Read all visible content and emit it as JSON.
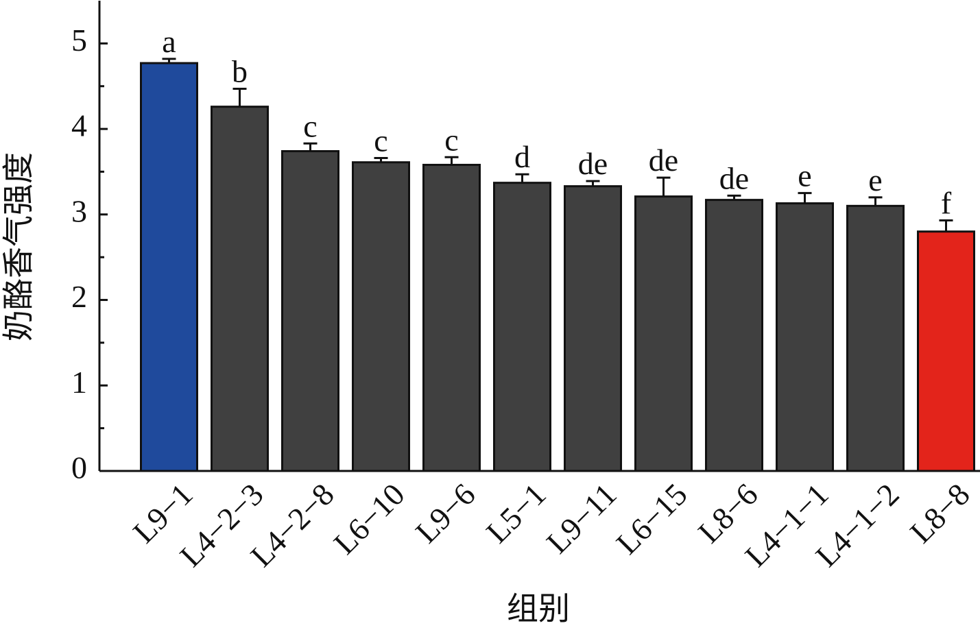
{
  "chart_data": {
    "type": "bar",
    "x_label": "组别",
    "y_label": "奶酪香气强度",
    "categories": [
      "L9−1",
      "L4−2−3",
      "L4−2−8",
      "L6−10",
      "L9−6",
      "L5−1",
      "L9−11",
      "L6−15",
      "L8−6",
      "L4−1−1",
      "L4−1−2",
      "L8−8"
    ],
    "values": [
      4.77,
      4.26,
      3.74,
      3.61,
      3.58,
      3.37,
      3.33,
      3.21,
      3.17,
      3.13,
      3.1,
      2.8
    ],
    "errors": [
      0.05,
      0.21,
      0.09,
      0.05,
      0.09,
      0.1,
      0.06,
      0.22,
      0.05,
      0.12,
      0.1,
      0.13
    ],
    "annotations": [
      "a",
      "b",
      "c",
      "c",
      "c",
      "d",
      "de",
      "de",
      "de",
      "e",
      "e",
      "f"
    ],
    "colors": [
      "#1f4a9c",
      "#404040",
      "#404040",
      "#404040",
      "#404040",
      "#404040",
      "#404040",
      "#404040",
      "#404040",
      "#404040",
      "#404040",
      "#e3241b"
    ],
    "ylim": [
      0,
      5.5
    ],
    "yticks": [
      0,
      1,
      2,
      3,
      4,
      5
    ],
    "yminorticks": [
      0.5,
      1.5,
      2.5,
      3.5,
      4.5
    ]
  }
}
